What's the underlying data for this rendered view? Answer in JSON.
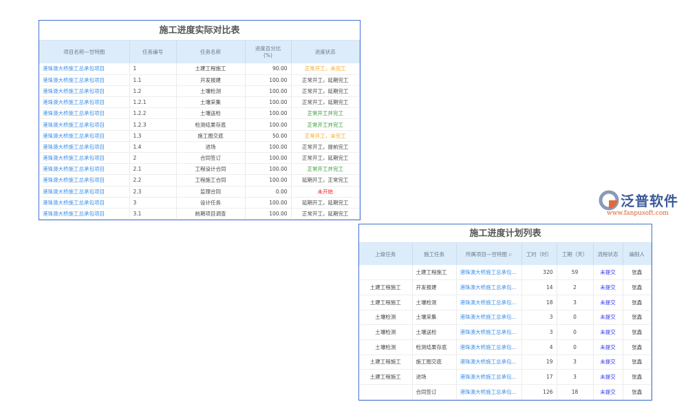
{
  "actual": {
    "title": "施工进度实际对比表",
    "headers": [
      "项目名称—甘特图",
      "任务编号",
      "任务名称",
      "进度百分比\n(%)",
      "进度状态"
    ],
    "rows": [
      [
        "港珠澳大桥施工总承包项目",
        "1",
        "土建工程施工",
        "90.00",
        "正常开工，未完工",
        "orange"
      ],
      [
        "港珠澳大桥施工总承包项目",
        "1.1",
        "开发报建",
        "100.00",
        "正常开工，延期完工",
        "gray"
      ],
      [
        "港珠澳大桥施工总承包项目",
        "1.2",
        "土壤检测",
        "100.00",
        "正常开工，延期完工",
        "gray"
      ],
      [
        "港珠澳大桥施工总承包项目",
        "1.2.1",
        "土壤采集",
        "100.00",
        "正常开工，延期完工",
        "gray"
      ],
      [
        "港珠澳大桥施工总承包项目",
        "1.2.2",
        "土壤送检",
        "100.00",
        "正常开工并完工",
        "green"
      ],
      [
        "港珠澳大桥施工总承包项目",
        "1.2.3",
        "检测结果存底",
        "100.00",
        "正常开工并完工",
        "green"
      ],
      [
        "港珠澳大桥施工总承包项目",
        "1.3",
        "施工图交底",
        "50.00",
        "正常开工，未完工",
        "orange"
      ],
      [
        "港珠澳大桥施工总承包项目",
        "1.4",
        "进场",
        "100.00",
        "正常开工，提前完工",
        "gray"
      ],
      [
        "港珠澳大桥施工总承包项目",
        "2",
        "合同签订",
        "100.00",
        "正常开工，延期完工",
        "gray"
      ],
      [
        "港珠澳大桥施工总承包项目",
        "2.1",
        "工程设计合同",
        "100.00",
        "正常开工并完工",
        "green"
      ],
      [
        "港珠澳大桥施工总承包项目",
        "2.2",
        "工程施工合同",
        "100.00",
        "延期开工，正常完工",
        "gray"
      ],
      [
        "港珠澳大桥施工总承包项目",
        "2.3",
        "监理合同",
        "0.00",
        "未开始",
        "red"
      ],
      [
        "港珠澳大桥施工总承包项目",
        "3",
        "设计任务",
        "100.00",
        "延期开工，延期完工",
        "gray"
      ],
      [
        "港珠澳大桥施工总承包项目",
        "3.1",
        "前期项目调查",
        "100.00",
        "正常开工，延期完工",
        "gray"
      ]
    ],
    "status_colors": {
      "orange": "#f5a623",
      "gray": "#444444",
      "green": "#2e9a2e",
      "red": "#ee2222"
    }
  },
  "plan": {
    "title": "施工进度计划列表",
    "headers": [
      "上级任务",
      "施工任务",
      "所属项目—甘特图",
      "工时（时）",
      "工期（天）",
      "流程状态",
      "编制人"
    ],
    "sort_icon": "sort-icon",
    "rows": [
      [
        "",
        "土建工程施工",
        "港珠澳大桥施工总承包...",
        "320",
        "59",
        "未提交",
        "张鑫"
      ],
      [
        "土建工程施工",
        "开发报建",
        "港珠澳大桥施工总承包...",
        "14",
        "2",
        "未提交",
        "张鑫"
      ],
      [
        "土建工程施工",
        "土壤检测",
        "港珠澳大桥施工总承包...",
        "18",
        "3",
        "未提交",
        "张鑫"
      ],
      [
        "土壤检测",
        "土壤采集",
        "港珠澳大桥施工总承包...",
        "3",
        "0",
        "未提交",
        "张鑫"
      ],
      [
        "土壤检测",
        "土壤送检",
        "港珠澳大桥施工总承包...",
        "3",
        "0",
        "未提交",
        "张鑫"
      ],
      [
        "土壤检测",
        "检测结果存底",
        "港珠澳大桥施工总承包...",
        "4",
        "0",
        "未提交",
        "张鑫"
      ],
      [
        "土建工程施工",
        "施工图交底",
        "港珠澳大桥施工总承包...",
        "19",
        "3",
        "未提交",
        "张鑫"
      ],
      [
        "土建工程施工",
        "进场",
        "港珠澳大桥施工总承包...",
        "17",
        "3",
        "未提交",
        "张鑫"
      ],
      [
        "",
        "合同签订",
        "港珠澳大桥施工总承包...",
        "126",
        "18",
        "未提交",
        "张鑫"
      ]
    ]
  },
  "logo": {
    "brand": "泛普软件",
    "url": "www.fanpusoft.com"
  }
}
